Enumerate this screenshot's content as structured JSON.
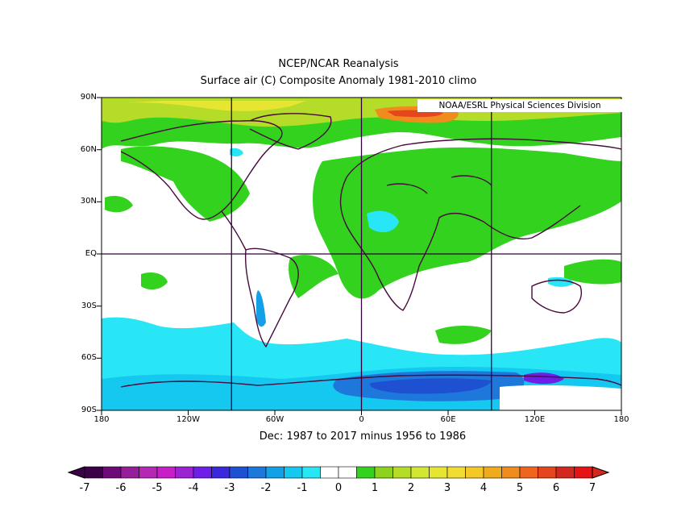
{
  "title_line1": "NCEP/NCAR Reanalysis",
  "title_line2": "Surface air (C) Composite Anomaly 1981-2010 climo",
  "credit": "NOAA/ESRL Physical Sciences Division",
  "subtitle": "Dec: 1987 to 2017 minus 1956 to 1986",
  "lat_labels": [
    "90N",
    "60N",
    "30N",
    "EQ",
    "30S",
    "60S",
    "90S"
  ],
  "lon_labels": [
    "180",
    "120W",
    "60W",
    "0",
    "60E",
    "120E",
    "180"
  ],
  "colorbar": {
    "labels": [
      "-7",
      "-6",
      "-5",
      "-4",
      "-3",
      "-2",
      "-1",
      "0",
      "1",
      "2",
      "3",
      "4",
      "5",
      "6",
      "7"
    ],
    "colors": [
      "#3c0046",
      "#6e0a78",
      "#961e9b",
      "#b428b4",
      "#c81ec8",
      "#9b23d2",
      "#6e1ee6",
      "#3c28dc",
      "#1e50d2",
      "#1e78dc",
      "#14a0e6",
      "#14c8f0",
      "#28e6f5",
      "#ffffff",
      "#ffffff",
      "#32d21e",
      "#8cd21e",
      "#b4dc28",
      "#d2e632",
      "#e6e632",
      "#f0dc32",
      "#f5c828",
      "#f0aa1e",
      "#f08c1e",
      "#f0641e",
      "#e6461e",
      "#d2281e",
      "#e61414"
    ]
  },
  "colors": {
    "land": "#460a3c",
    "grid": "#32003c"
  }
}
